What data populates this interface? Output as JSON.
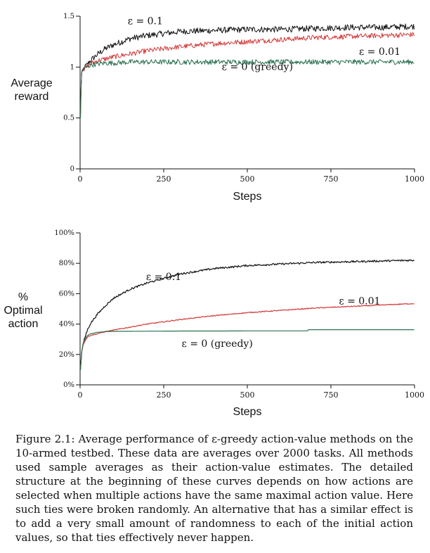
{
  "colors": {
    "eps_0_1": "#111111",
    "eps_0_01": "#d23a3a",
    "eps_0": "#2a7050",
    "axis": "#111111"
  },
  "chart_data": [
    {
      "type": "line",
      "title": "",
      "xlabel": "Steps",
      "ylabel": [
        "Average",
        "reward"
      ],
      "xlim": [
        0,
        1000
      ],
      "ylim": [
        0,
        1.5
      ],
      "x_ticks": [
        "0",
        "250",
        "500",
        "750",
        "1000"
      ],
      "y_ticks": [
        "0",
        "0.5",
        "1",
        "1.5"
      ],
      "grid": false,
      "legend": "inline labels",
      "series": [
        {
          "name": "ε = 0.1",
          "color": "#111111",
          "noise": 0.03,
          "x": [
            1,
            3,
            5,
            10,
            20,
            30,
            50,
            75,
            100,
            150,
            200,
            250,
            300,
            400,
            500,
            600,
            700,
            800,
            900,
            1000
          ],
          "y": [
            0.5,
            0.8,
            0.95,
            0.98,
            1.02,
            1.06,
            1.12,
            1.18,
            1.22,
            1.28,
            1.31,
            1.33,
            1.35,
            1.36,
            1.37,
            1.37,
            1.38,
            1.39,
            1.39,
            1.4
          ]
        },
        {
          "name": "ε = 0.01",
          "color": "#d23a3a",
          "noise": 0.025,
          "x": [
            1,
            3,
            5,
            10,
            20,
            30,
            50,
            75,
            100,
            150,
            200,
            250,
            300,
            400,
            500,
            600,
            700,
            800,
            900,
            1000
          ],
          "y": [
            0.5,
            0.8,
            0.95,
            0.98,
            1.0,
            1.03,
            1.06,
            1.08,
            1.1,
            1.13,
            1.16,
            1.18,
            1.2,
            1.23,
            1.25,
            1.27,
            1.29,
            1.3,
            1.31,
            1.32
          ]
        },
        {
          "name": "ε = 0 (greedy)",
          "color": "#2a7050",
          "noise": 0.025,
          "x": [
            1,
            3,
            5,
            10,
            20,
            30,
            50,
            75,
            100,
            150,
            200,
            250,
            300,
            400,
            500,
            600,
            700,
            800,
            900,
            1000
          ],
          "y": [
            0.5,
            0.8,
            0.95,
            0.98,
            1.0,
            1.02,
            1.03,
            1.04,
            1.04,
            1.05,
            1.05,
            1.05,
            1.05,
            1.05,
            1.05,
            1.05,
            1.05,
            1.05,
            1.05,
            1.05
          ]
        }
      ],
      "labels": [
        {
          "series": 0,
          "text": "ε = 0.1",
          "at": [
            195,
            1.42
          ]
        },
        {
          "series": 1,
          "text": "ε = 0.01",
          "at": [
            1000,
            1.12
          ]
        },
        {
          "series": 2,
          "text": "ε = 0 (greedy)",
          "at": [
            530,
            0.97
          ]
        }
      ]
    },
    {
      "type": "line",
      "title": "",
      "xlabel": "Steps",
      "ylabel": [
        "%",
        "Optimal",
        "action"
      ],
      "xlim": [
        0,
        1000
      ],
      "ylim": [
        0,
        100
      ],
      "x_ticks": [
        "0",
        "250",
        "500",
        "750",
        "1000"
      ],
      "y_ticks": [
        "0%",
        "20%",
        "40%",
        "60%",
        "80%",
        "100%"
      ],
      "grid": false,
      "legend": "inline labels",
      "series": [
        {
          "name": "ε = 0.1",
          "color": "#111111",
          "noise": 0.6,
          "x": [
            1,
            5,
            10,
            20,
            30,
            50,
            75,
            100,
            150,
            200,
            250,
            300,
            400,
            500,
            600,
            700,
            800,
            900,
            1000
          ],
          "y": [
            10,
            22,
            28,
            35,
            40,
            46,
            52,
            57,
            63,
            67,
            70,
            73,
            76.5,
            78.5,
            79.5,
            80.5,
            81,
            81.5,
            82
          ]
        },
        {
          "name": "ε = 0.01",
          "color": "#d23a3a",
          "noise": 0.3,
          "x": [
            1,
            5,
            10,
            20,
            30,
            50,
            75,
            100,
            150,
            200,
            250,
            300,
            400,
            500,
            600,
            700,
            800,
            900,
            1000
          ],
          "y": [
            10,
            22,
            27,
            31,
            32.5,
            33.5,
            35,
            36,
            38,
            40,
            41.5,
            43,
            45.5,
            47.5,
            49,
            50.5,
            51.5,
            52.5,
            53.5
          ]
        },
        {
          "name": "ε = 0 (greedy)",
          "color": "#2a7050",
          "noise": 0,
          "x": [
            1,
            5,
            10,
            20,
            30,
            50,
            75,
            100,
            200,
            300,
            400,
            500,
            600,
            680,
            682,
            800,
            900,
            1000
          ],
          "y": [
            10,
            22,
            28,
            32,
            33.5,
            34.5,
            35,
            35.2,
            35.3,
            35.4,
            35.4,
            35.5,
            35.5,
            35.5,
            36.3,
            36.3,
            36.3,
            36.3
          ]
        }
      ],
      "labels": [
        {
          "series": 0,
          "text": "ε = 0.1",
          "at": [
            250,
            69
          ]
        },
        {
          "series": 1,
          "text": "ε = 0.01",
          "at": [
            940,
            53
          ]
        },
        {
          "series": 2,
          "text": "ε = 0 (greedy)",
          "at": [
            410,
            25
          ]
        }
      ]
    }
  ],
  "caption": "Figure 2.1: Average performance of ε-greedy action-value methods on the 10-armed testbed. These data are averages over 2000 tasks. All methods used sample averages as their action-value estimates. The detailed structure at the beginning of these curves depends on how actions are selected when multiple actions have the same maximal action value. Here such ties were broken randomly. An alternative that has a similar effect is to add a very small amount of randomness to each of the initial action values, so that ties effectively never happen."
}
